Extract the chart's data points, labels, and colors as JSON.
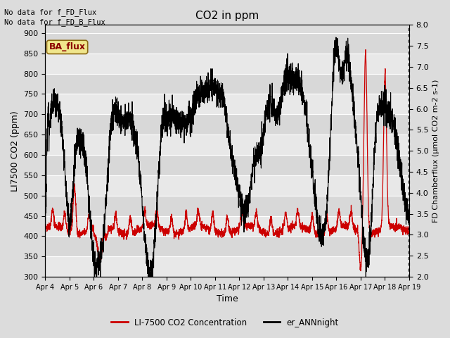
{
  "title": "CO2 in ppm",
  "xlabel": "Time",
  "ylabel_left": "LI7500 CO2 (ppm)",
  "ylabel_right": "FD Chamberflux (μmol CO2 m-2 s-1)",
  "ylim_left": [
    300,
    920
  ],
  "ylim_right": [
    2.0,
    8.0
  ],
  "yticks_left": [
    300,
    350,
    400,
    450,
    500,
    550,
    600,
    650,
    700,
    750,
    800,
    850,
    900
  ],
  "yticks_right": [
    2.0,
    2.5,
    3.0,
    3.5,
    4.0,
    4.5,
    5.0,
    5.5,
    6.0,
    6.5,
    7.0,
    7.5,
    8.0
  ],
  "xtick_labels": [
    "Apr 4",
    "Apr 5",
    "Apr 6",
    "Apr 7",
    "Apr 8",
    "Apr 9",
    "Apr 10",
    "Apr 11",
    "Apr 12",
    "Apr 13",
    "Apr 14",
    "Apr 15",
    "Apr 16",
    "Apr 17",
    "Apr 18",
    "Apr 19"
  ],
  "text_no_data1": "No data for f_FD_Flux",
  "text_no_data2": "No data for f_FD_B_Flux",
  "ba_flux_label": "BA_flux",
  "legend_red_label": "LI-7500 CO2 Concentration",
  "legend_black_label": "er_ANNnight",
  "bg_color": "#dcdcdc",
  "plot_bg_color": "#dcdcdc",
  "red_color": "#cc0000",
  "black_color": "#000000",
  "ba_flux_bg": "#f0e68c",
  "ba_flux_text_color": "#8b0000",
  "grid_color": "#ffffff",
  "n_points": 3000,
  "seed": 42,
  "band_color1": "#d8d8d8",
  "band_color2": "#e8e8e8"
}
